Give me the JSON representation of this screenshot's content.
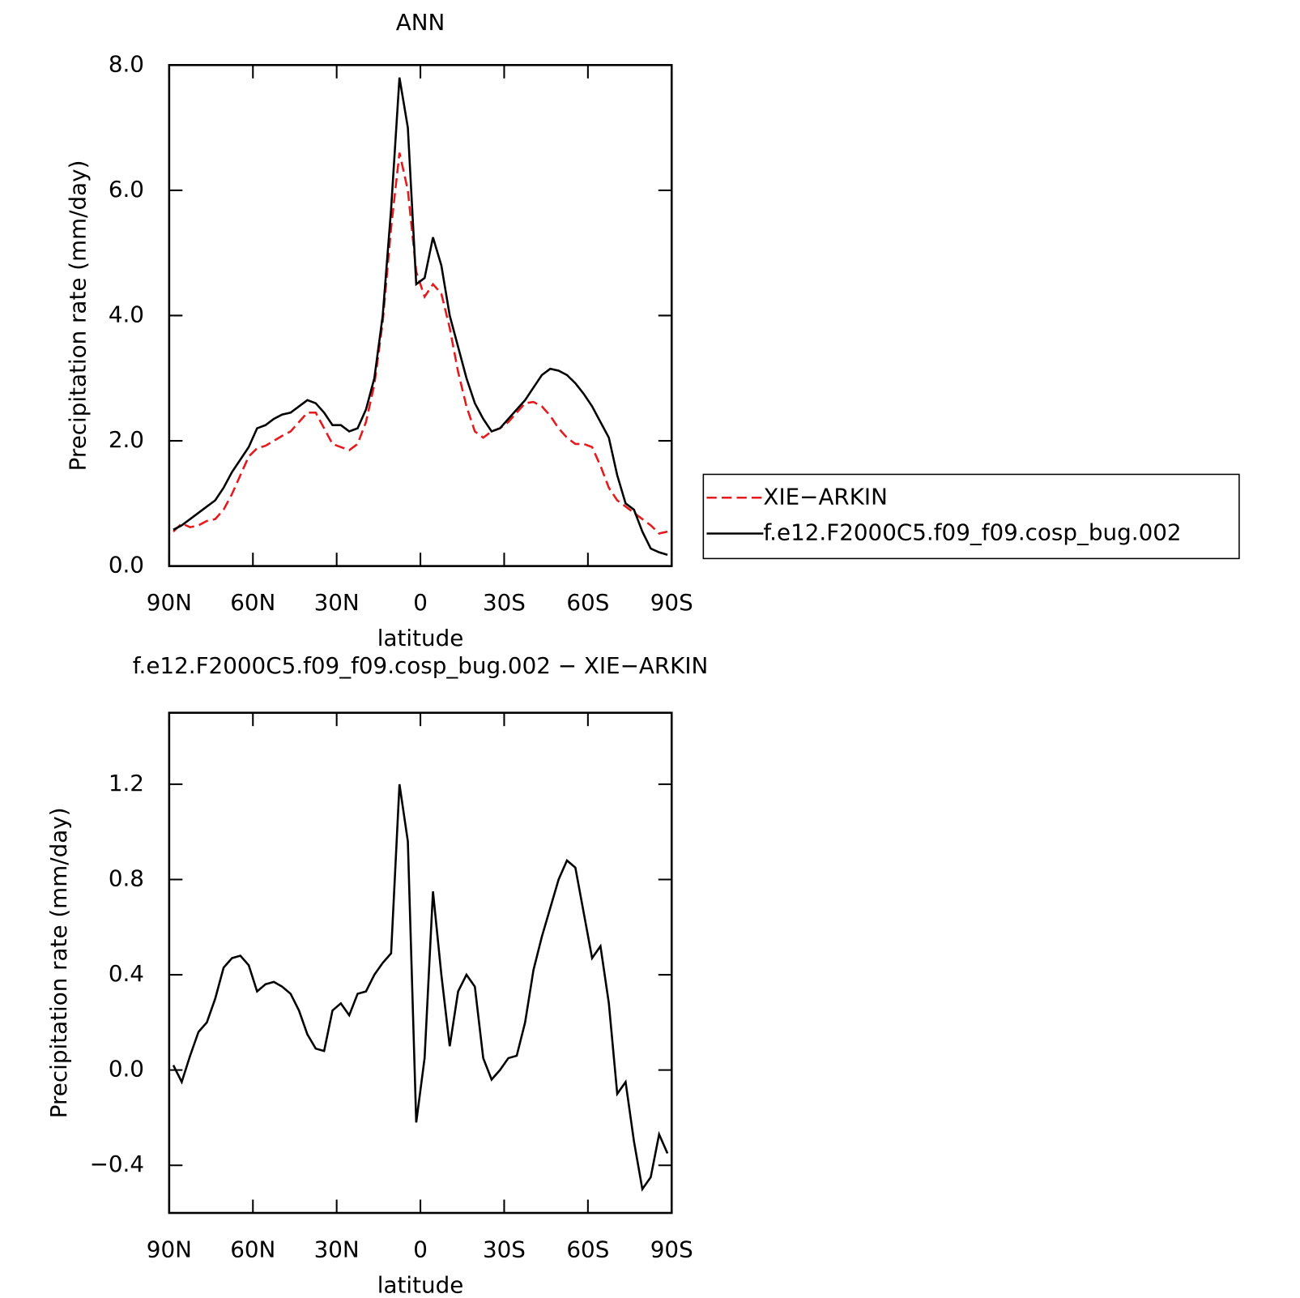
{
  "chart_data": [
    {
      "type": "line",
      "title": "ANN",
      "xlabel": "latitude",
      "ylabel": "Precipitation rate (mm/day)",
      "x": [
        88.5,
        85.5,
        82.5,
        79.5,
        76.5,
        73.5,
        70.5,
        67.5,
        64.5,
        61.5,
        58.5,
        55.5,
        52.5,
        49.5,
        46.5,
        43.5,
        40.5,
        37.5,
        34.5,
        31.5,
        28.5,
        25.5,
        22.5,
        19.5,
        16.5,
        13.5,
        10.5,
        7.5,
        4.5,
        1.5,
        -1.5,
        -4.5,
        -7.5,
        -10.5,
        -13.5,
        -16.5,
        -19.5,
        -22.5,
        -25.5,
        -28.5,
        -31.5,
        -34.5,
        -37.5,
        -40.5,
        -43.5,
        -46.5,
        -49.5,
        -52.5,
        -55.5,
        -58.5,
        -61.5,
        -64.5,
        -67.5,
        -70.5,
        -73.5,
        -76.5,
        -79.5,
        -82.5,
        -85.5,
        -88.5
      ],
      "series": [
        {
          "name": "XIE−ARKIN",
          "color": "#e41a1c",
          "dash": true,
          "values": [
            0.55,
            0.68,
            0.62,
            0.65,
            0.72,
            0.75,
            0.9,
            1.15,
            1.45,
            1.75,
            1.88,
            1.92,
            2.0,
            2.08,
            2.15,
            2.3,
            2.45,
            2.45,
            2.2,
            1.95,
            1.9,
            1.85,
            1.95,
            2.3,
            2.9,
            3.9,
            5.4,
            6.6,
            6.0,
            4.7,
            4.3,
            4.5,
            4.35,
            3.8,
            3.1,
            2.55,
            2.15,
            2.05,
            2.15,
            2.2,
            2.3,
            2.45,
            2.6,
            2.62,
            2.55,
            2.4,
            2.2,
            2.05,
            1.95,
            1.95,
            1.9,
            1.6,
            1.25,
            1.05,
            0.95,
            0.85,
            0.75,
            0.65,
            0.52,
            0.55
          ]
        },
        {
          "name": "f.e12.F2000C5.f09_f09.cosp_bug.002",
          "color": "#000000",
          "dash": false,
          "values": [
            0.58,
            0.65,
            0.75,
            0.85,
            0.95,
            1.05,
            1.25,
            1.5,
            1.7,
            1.9,
            2.2,
            2.25,
            2.35,
            2.42,
            2.45,
            2.55,
            2.65,
            2.6,
            2.45,
            2.25,
            2.25,
            2.15,
            2.2,
            2.5,
            3.0,
            4.0,
            5.7,
            7.8,
            7.0,
            4.5,
            4.6,
            5.25,
            4.8,
            4.0,
            3.5,
            3.0,
            2.6,
            2.35,
            2.15,
            2.2,
            2.35,
            2.5,
            2.65,
            2.85,
            3.05,
            3.15,
            3.12,
            3.05,
            2.92,
            2.75,
            2.55,
            2.3,
            2.05,
            1.45,
            1.0,
            0.9,
            0.55,
            0.28,
            0.22,
            0.18
          ]
        }
      ],
      "xlim": [
        90,
        -90
      ],
      "xticks": [
        {
          "value": 90,
          "label": "90N"
        },
        {
          "value": 60,
          "label": "60N"
        },
        {
          "value": 30,
          "label": "30N"
        },
        0,
        {
          "value": -30,
          "label": "30S"
        },
        {
          "value": -60,
          "label": "60S"
        },
        {
          "value": -90,
          "label": "90S"
        }
      ],
      "ylim": [
        0,
        8
      ],
      "yticks": [
        {
          "value": 0,
          "label": "0.0"
        },
        {
          "value": 2,
          "label": "2.0"
        },
        {
          "value": 4,
          "label": "4.0"
        },
        {
          "value": 6,
          "label": "6.0"
        },
        {
          "value": 8,
          "label": "8.0"
        }
      ],
      "legend": "right"
    },
    {
      "type": "line",
      "title": "f.e12.F2000C5.f09_f09.cosp_bug.002 − XIE−ARKIN",
      "xlabel": "latitude",
      "ylabel": "Precipitation rate (mm/day)",
      "x": [
        88.5,
        85.5,
        82.5,
        79.5,
        76.5,
        73.5,
        70.5,
        67.5,
        64.5,
        61.5,
        58.5,
        55.5,
        52.5,
        49.5,
        46.5,
        43.5,
        40.5,
        37.5,
        34.5,
        31.5,
        28.5,
        25.5,
        22.5,
        19.5,
        16.5,
        13.5,
        10.5,
        7.5,
        4.5,
        1.5,
        -1.5,
        -4.5,
        -7.5,
        -10.5,
        -13.5,
        -16.5,
        -19.5,
        -22.5,
        -25.5,
        -28.5,
        -31.5,
        -34.5,
        -37.5,
        -40.5,
        -43.5,
        -46.5,
        -49.5,
        -52.5,
        -55.5,
        -58.5,
        -61.5,
        -64.5,
        -67.5,
        -70.5,
        -73.5,
        -76.5,
        -79.5,
        -82.5,
        -85.5,
        -88.5
      ],
      "series": [
        {
          "color": "#000000",
          "dash": false,
          "values": [
            0.02,
            -0.05,
            0.06,
            0.16,
            0.2,
            0.3,
            0.43,
            0.47,
            0.48,
            0.44,
            0.33,
            0.36,
            0.37,
            0.35,
            0.32,
            0.25,
            0.15,
            0.09,
            0.08,
            0.25,
            0.28,
            0.23,
            0.32,
            0.33,
            0.4,
            0.45,
            0.49,
            1.2,
            0.96,
            -0.22,
            0.05,
            0.75,
            0.4,
            0.1,
            0.33,
            0.4,
            0.35,
            0.05,
            -0.04,
            0.0,
            0.05,
            0.06,
            0.2,
            0.42,
            0.56,
            0.68,
            0.8,
            0.88,
            0.85,
            0.66,
            0.47,
            0.52,
            0.28,
            -0.1,
            -0.05,
            -0.3,
            -0.5,
            -0.45,
            -0.27,
            -0.35
          ]
        }
      ],
      "xlim": [
        90,
        -90
      ],
      "xticks": [
        {
          "value": 90,
          "label": "90N"
        },
        {
          "value": 60,
          "label": "60N"
        },
        {
          "value": 30,
          "label": "30N"
        },
        0,
        {
          "value": -30,
          "label": "30S"
        },
        {
          "value": -60,
          "label": "60S"
        },
        {
          "value": -90,
          "label": "90S"
        }
      ],
      "ylim": [
        -0.6,
        1.5
      ],
      "yticks": [
        {
          "value": -0.4,
          "label": "−0.4"
        },
        {
          "value": 0,
          "label": "0.0"
        },
        {
          "value": 0.4,
          "label": "0.4"
        },
        {
          "value": 0.8,
          "label": "0.8"
        },
        {
          "value": 1.2,
          "label": "1.2"
        }
      ]
    }
  ]
}
